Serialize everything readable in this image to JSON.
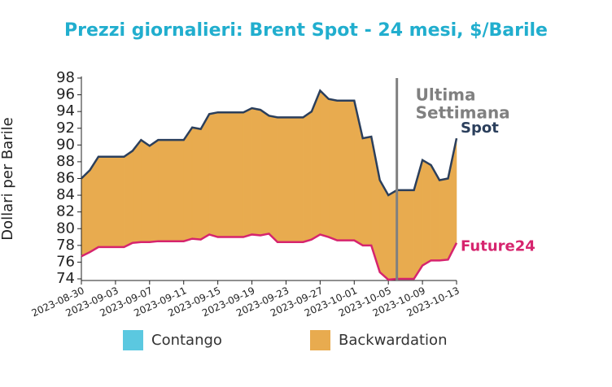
{
  "chart_data": {
    "type": "line",
    "title": "Prezzi giornalieri: Brent Spot - 24 mesi, $/Barile",
    "y_label": "Dollari per Barile",
    "x": [
      "2023-08-30",
      "2023-08-31",
      "2023-09-01",
      "2023-09-04",
      "2023-09-05",
      "2023-09-06",
      "2023-09-07",
      "2023-09-08",
      "2023-09-11",
      "2023-09-12",
      "2023-09-13",
      "2023-09-14",
      "2023-09-15",
      "2023-09-18",
      "2023-09-19",
      "2023-09-20",
      "2023-09-21",
      "2023-09-22",
      "2023-09-25",
      "2023-09-26",
      "2023-09-27",
      "2023-09-28",
      "2023-09-29",
      "2023-10-01",
      "2023-10-02",
      "2023-10-03",
      "2023-10-04",
      "2023-10-05",
      "2023-10-06",
      "2023-10-08",
      "2023-10-09",
      "2023-10-10",
      "2023-10-11",
      "2023-10-12",
      "2023-10-13"
    ],
    "series": [
      {
        "name": "Spot",
        "color": "#2b3f5c",
        "values": [
          86.0,
          87.0,
          88.6,
          88.6,
          89.3,
          90.6,
          89.9,
          90.6,
          90.6,
          92.1,
          91.9,
          93.7,
          93.9,
          93.9,
          94.4,
          94.2,
          93.5,
          93.3,
          93.3,
          94.0,
          96.5,
          95.5,
          95.3,
          95.3,
          90.8,
          91.0,
          85.8,
          84.0,
          84.6,
          84.6,
          88.2,
          87.6,
          85.8,
          86.0,
          90.8
        ]
      },
      {
        "name": "Future24",
        "color": "#d6246e",
        "values": [
          76.7,
          77.2,
          77.8,
          77.8,
          78.3,
          78.4,
          78.4,
          78.5,
          78.5,
          78.8,
          78.7,
          79.3,
          79.0,
          79.0,
          79.3,
          79.2,
          79.4,
          78.4,
          78.4,
          78.7,
          79.3,
          79.0,
          78.6,
          78.6,
          78.0,
          78.0,
          74.8,
          73.9,
          74.0,
          74.0,
          75.6,
          76.2,
          76.2,
          76.3,
          78.3
        ]
      }
    ],
    "fills": [
      {
        "name": "Contango",
        "color": "#5bc8e0"
      },
      {
        "name": "Backwardation",
        "color": "#e8ab4f"
      }
    ],
    "annotation": {
      "x": "2023-10-06",
      "lines": [
        "Ultima",
        "Settimana"
      ],
      "color": "#808080"
    },
    "xlim": [
      "2023-08-30",
      "2023-10-13"
    ],
    "xticks": [
      "2023-08-30",
      "2023-09-03",
      "2023-09-07",
      "2023-09-11",
      "2023-09-15",
      "2023-09-19",
      "2023-09-23",
      "2023-09-27",
      "2023-10-01",
      "2023-10-05",
      "2023-10-09",
      "2023-10-13"
    ],
    "ylim": [
      74,
      98
    ],
    "yticks": [
      74,
      76,
      78,
      80,
      82,
      84,
      86,
      88,
      90,
      92,
      94,
      96,
      98
    ]
  }
}
